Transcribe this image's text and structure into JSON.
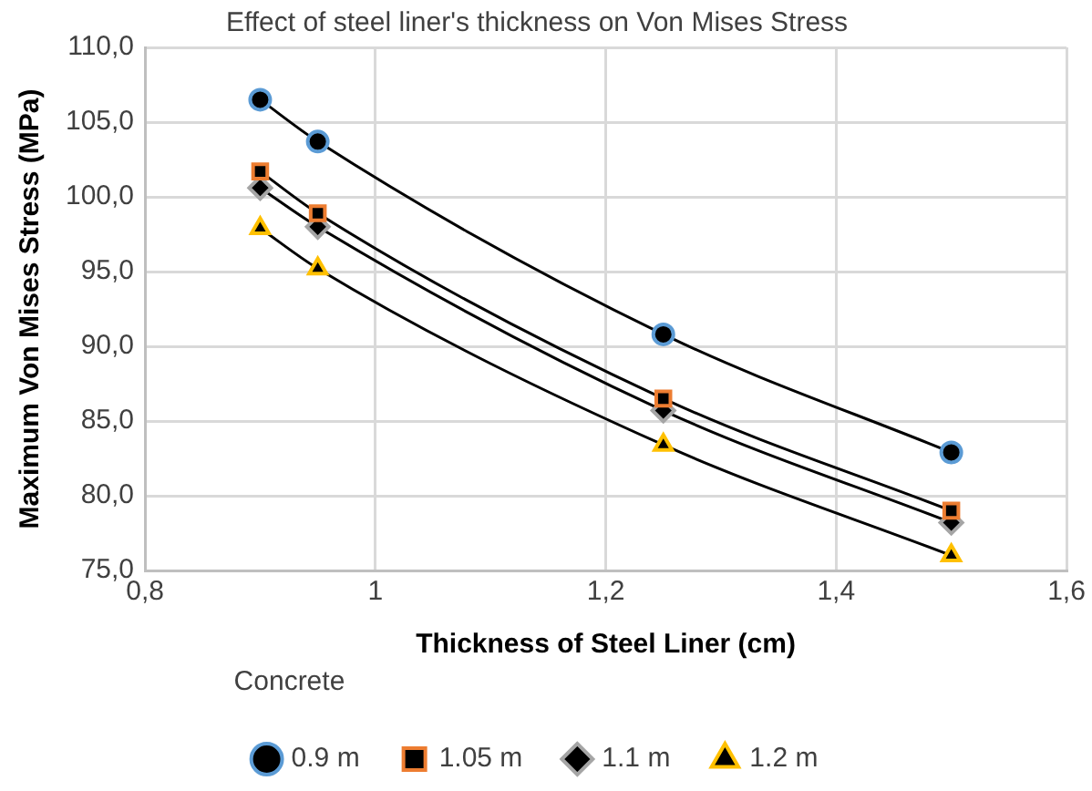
{
  "chart_data": {
    "type": "line",
    "title": "Effect of steel liner's thickness on Von Mises Stress",
    "xlabel": "Thickness of Steel Liner (cm)",
    "ylabel": "Maximum Von Mises Stress (MPa)",
    "legend_title": "Concrete",
    "legend": "bottom",
    "grid": true,
    "x": [
      0.9,
      0.95,
      1.25,
      1.5
    ],
    "series": [
      {
        "name": "0.9 m",
        "color": "#5b9bd5",
        "marker": "circle",
        "values": [
          106.5,
          103.7,
          90.8,
          82.9
        ]
      },
      {
        "name": "1.05 m",
        "color": "#ed7d31",
        "marker": "square",
        "values": [
          101.7,
          98.9,
          86.5,
          79.0
        ]
      },
      {
        "name": "1.1 m",
        "color": "#a5a5a5",
        "marker": "diamond",
        "values": [
          100.6,
          98.0,
          85.7,
          78.2
        ]
      },
      {
        "name": "1.2 m",
        "color": "#ffc000",
        "marker": "triangle",
        "values": [
          97.9,
          95.2,
          83.4,
          76.0
        ]
      }
    ],
    "xlim": [
      0.8,
      1.6
    ],
    "xticks": [
      {
        "value": 0.8,
        "label": "0,8"
      },
      1,
      {
        "value": 1.2,
        "label": "1,2"
      },
      {
        "value": 1.4,
        "label": "1,4"
      },
      {
        "value": 1.6,
        "label": "1,6"
      }
    ],
    "ylim": [
      75,
      110
    ],
    "yticks": [
      {
        "value": 75,
        "label": "75,0"
      },
      {
        "value": 80,
        "label": "80,0"
      },
      {
        "value": 85,
        "label": "85,0"
      },
      {
        "value": 90,
        "label": "90,0"
      },
      {
        "value": 95,
        "label": "95,0"
      },
      {
        "value": 100,
        "label": "100,0"
      },
      {
        "value": 105,
        "label": "105,0"
      },
      {
        "value": 110,
        "label": "110,0"
      }
    ]
  }
}
